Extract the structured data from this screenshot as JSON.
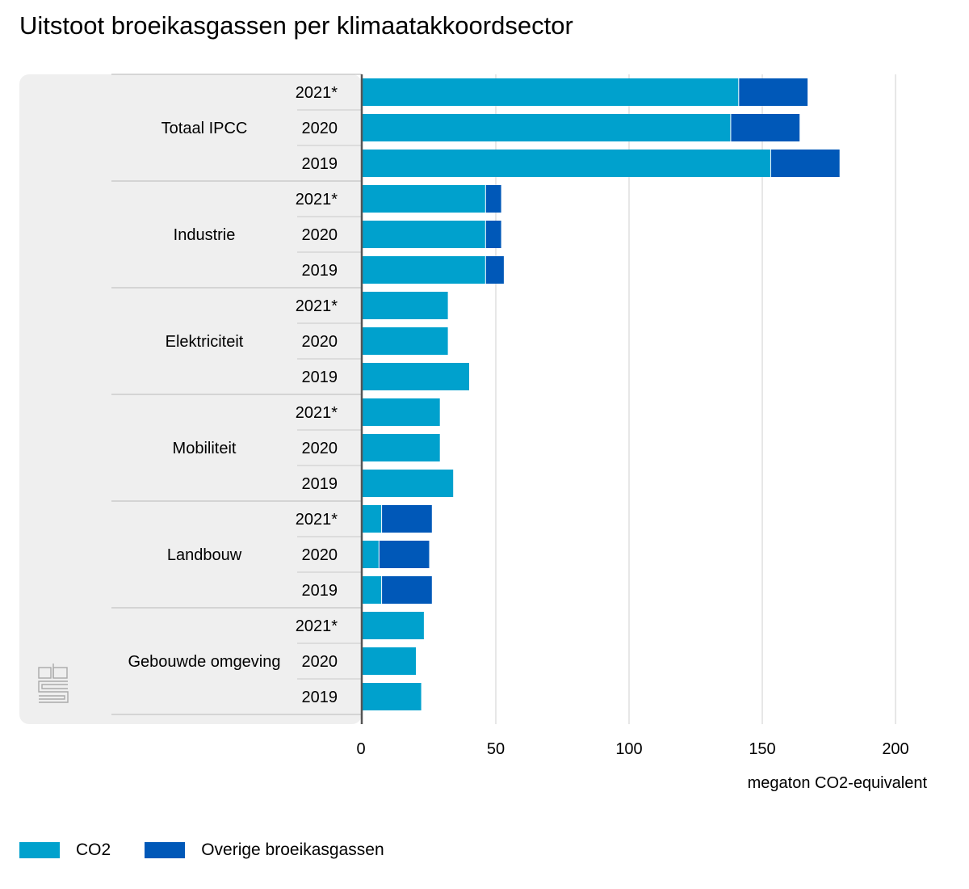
{
  "title": "Uitstoot broeikasgassen per klimaatakkoordsector",
  "chart_data": {
    "type": "bar",
    "orientation": "horizontal",
    "stacked": true,
    "title": "Uitstoot broeikasgassen per klimaatakkoordsector",
    "xlabel": "megaton CO2-equivalent",
    "xlim": [
      0,
      200
    ],
    "xticks": [
      0,
      50,
      100,
      150,
      200
    ],
    "series_colors": [
      "#00a1cd",
      "#0058b8"
    ],
    "legend": [
      {
        "name": "CO2",
        "color": "#00a1cd"
      },
      {
        "name": "Overige broeikasgassen",
        "color": "#0058b8"
      }
    ],
    "groups": [
      {
        "name": "Totaal IPCC",
        "rows": [
          {
            "year": "2021*",
            "co2": 141,
            "overig": 26
          },
          {
            "year": "2020",
            "co2": 138,
            "overig": 26
          },
          {
            "year": "2019",
            "co2": 153,
            "overig": 26
          }
        ]
      },
      {
        "name": "Industrie",
        "rows": [
          {
            "year": "2021*",
            "co2": 46,
            "overig": 6
          },
          {
            "year": "2020",
            "co2": 46,
            "overig": 6
          },
          {
            "year": "2019",
            "co2": 46,
            "overig": 7
          }
        ]
      },
      {
        "name": "Elektriciteit",
        "rows": [
          {
            "year": "2021*",
            "co2": 32,
            "overig": 0
          },
          {
            "year": "2020",
            "co2": 32,
            "overig": 0
          },
          {
            "year": "2019",
            "co2": 40,
            "overig": 0
          }
        ]
      },
      {
        "name": "Mobiliteit",
        "rows": [
          {
            "year": "2021*",
            "co2": 29,
            "overig": 0
          },
          {
            "year": "2020",
            "co2": 29,
            "overig": 0
          },
          {
            "year": "2019",
            "co2": 34,
            "overig": 0
          }
        ]
      },
      {
        "name": "Landbouw",
        "rows": [
          {
            "year": "2021*",
            "co2": 7,
            "overig": 19
          },
          {
            "year": "2020",
            "co2": 6,
            "overig": 19
          },
          {
            "year": "2019",
            "co2": 7,
            "overig": 19
          }
        ]
      },
      {
        "name": "Gebouwde omgeving",
        "rows": [
          {
            "year": "2021*",
            "co2": 23,
            "overig": 0
          },
          {
            "year": "2020",
            "co2": 20,
            "overig": 0
          },
          {
            "year": "2019",
            "co2": 22,
            "overig": 0
          }
        ]
      }
    ]
  },
  "logo": {
    "text": "cbs",
    "icon": "cbs-logo-icon"
  }
}
